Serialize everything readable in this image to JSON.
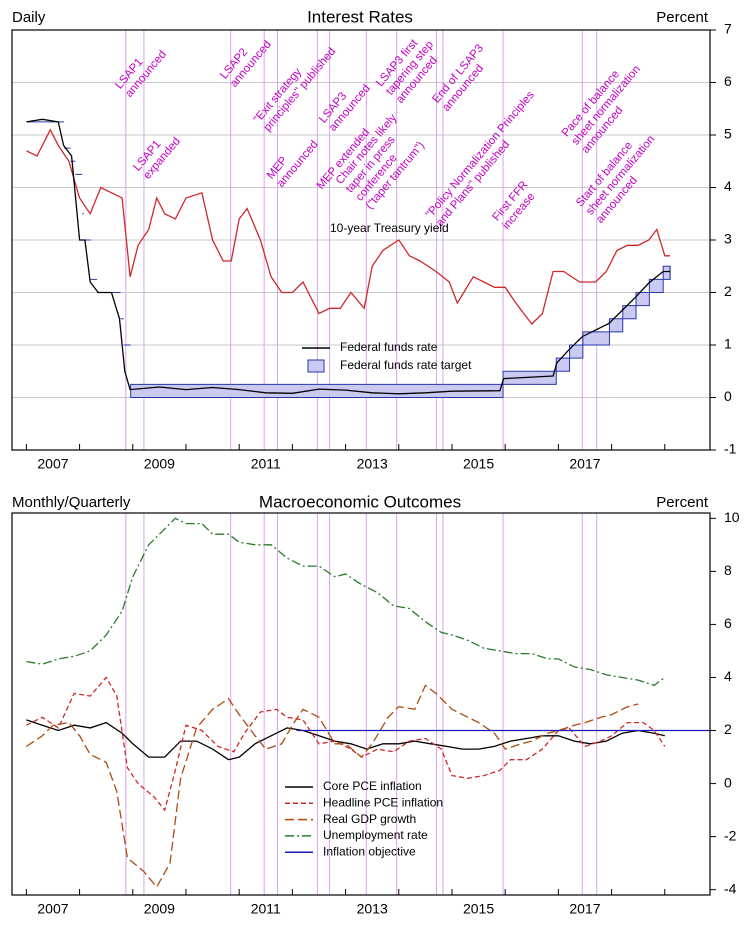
{
  "chart_data": [
    {
      "type": "line",
      "title": "Interest Rates",
      "left_label": "Daily",
      "right_label": "Percent",
      "xlim": [
        2006.73,
        2019.85
      ],
      "ylim": [
        -1,
        7
      ],
      "yticks": [
        -1,
        0,
        1,
        2,
        3,
        4,
        5,
        6,
        7
      ],
      "grid": true,
      "xtick_marks": [
        2007,
        2008,
        2009,
        2010,
        2011,
        2012,
        2013,
        2014,
        2015,
        2016,
        2017,
        2018,
        2019
      ],
      "xticks": [
        {
          "value": 2007.5,
          "label": "2007"
        },
        {
          "value": 2009.5,
          "label": "2009"
        },
        {
          "value": 2011.5,
          "label": "2011"
        },
        {
          "value": 2013.5,
          "label": "2013"
        },
        {
          "value": 2015.5,
          "label": "2015"
        },
        {
          "value": 2017.5,
          "label": "2017"
        }
      ],
      "events": [
        {
          "x": 2008.87,
          "lines": [
            "LSAP1",
            "announced"
          ]
        },
        {
          "x": 2009.21,
          "lines": [
            "LSAP1",
            "expanded"
          ]
        },
        {
          "x": 2010.84,
          "lines": [
            "LSAP2",
            "announced"
          ]
        },
        {
          "x": 2011.47,
          "lines": [
            "\"Exit strategy",
            "principles\" published"
          ]
        },
        {
          "x": 2011.72,
          "lines": [
            "MEP",
            "announced"
          ]
        },
        {
          "x": 2012.47,
          "lines": [
            "MEP extended"
          ]
        },
        {
          "x": 2012.7,
          "lines": [
            "LSAP3",
            "announced"
          ]
        },
        {
          "x": 2013.39,
          "lines": [
            "Chair notes likely",
            "taper in press",
            "conference",
            "(\"taper tantrum\")"
          ]
        },
        {
          "x": 2013.96,
          "lines": [
            "LSAP3 first",
            "tapering step",
            "announced"
          ]
        },
        {
          "x": 2014.71,
          "lines": [
            "\"Policy Normalization Principles",
            "and Plans\" published"
          ]
        },
        {
          "x": 2014.83,
          "lines": [
            "End of LSAP3",
            "announced"
          ]
        },
        {
          "x": 2015.96,
          "lines": [
            "First FFR",
            "increase"
          ]
        },
        {
          "x": 2017.45,
          "lines": [
            "Pace of balance",
            "sheet normalization",
            "announced"
          ]
        },
        {
          "x": 2017.72,
          "lines": [
            "Start of balance",
            "sheet normalization",
            "announced"
          ]
        }
      ],
      "series": [
        {
          "name": "10-year Treasury yield",
          "type": "line",
          "legend": false,
          "color": "#d02828",
          "dash": "solid",
          "x": [
            2007.0,
            2007.2,
            2007.45,
            2007.6,
            2007.8,
            2008.0,
            2008.2,
            2008.4,
            2008.6,
            2008.8,
            2008.95,
            2009.1,
            2009.3,
            2009.45,
            2009.6,
            2009.8,
            2010.0,
            2010.3,
            2010.5,
            2010.7,
            2010.85,
            2011.0,
            2011.15,
            2011.4,
            2011.6,
            2011.8,
            2012.0,
            2012.2,
            2012.5,
            2012.7,
            2012.9,
            2013.1,
            2013.35,
            2013.5,
            2013.7,
            2014.0,
            2014.2,
            2014.4,
            2014.7,
            2014.95,
            2015.1,
            2015.4,
            2015.6,
            2015.8,
            2016.0,
            2016.2,
            2016.5,
            2016.7,
            2016.9,
            2017.1,
            2017.4,
            2017.7,
            2017.9,
            2018.1,
            2018.3,
            2018.5,
            2018.7,
            2018.85,
            2019.0,
            2019.1
          ],
          "values": [
            4.7,
            4.6,
            5.1,
            4.8,
            4.5,
            3.8,
            3.5,
            4.0,
            3.9,
            3.8,
            2.3,
            2.9,
            3.2,
            3.8,
            3.5,
            3.4,
            3.8,
            3.9,
            3.0,
            2.6,
            2.6,
            3.4,
            3.6,
            3.0,
            2.3,
            2.0,
            2.0,
            2.2,
            1.6,
            1.7,
            1.7,
            2.0,
            1.7,
            2.5,
            2.8,
            3.0,
            2.7,
            2.6,
            2.4,
            2.2,
            1.8,
            2.3,
            2.2,
            2.1,
            2.1,
            1.8,
            1.4,
            1.6,
            2.4,
            2.4,
            2.2,
            2.2,
            2.4,
            2.8,
            2.9,
            2.9,
            3.0,
            3.2,
            2.7,
            2.7
          ]
        },
        {
          "name": "Federal funds rate",
          "type": "line",
          "legend": true,
          "color": "#000000",
          "dash": "solid",
          "x": [
            2007.0,
            2007.3,
            2007.6,
            2007.7,
            2007.85,
            2008.0,
            2008.1,
            2008.2,
            2008.35,
            2008.6,
            2008.75,
            2008.85,
            2008.95,
            2009.5,
            2010.0,
            2010.5,
            2011.0,
            2011.5,
            2012.0,
            2012.5,
            2013.0,
            2013.5,
            2014.0,
            2014.5,
            2015.0,
            2015.9,
            2015.97,
            2016.9,
            2016.97,
            2017.2,
            2017.45,
            2017.95,
            2018.2,
            2018.45,
            2018.7,
            2018.97,
            2019.1
          ],
          "values": [
            5.25,
            5.3,
            5.25,
            4.8,
            4.6,
            3.0,
            3.0,
            2.2,
            2.0,
            2.0,
            1.5,
            0.5,
            0.15,
            0.2,
            0.15,
            0.19,
            0.15,
            0.09,
            0.08,
            0.16,
            0.14,
            0.09,
            0.07,
            0.09,
            0.12,
            0.13,
            0.36,
            0.41,
            0.66,
            0.91,
            1.16,
            1.41,
            1.66,
            1.91,
            2.18,
            2.4,
            2.4
          ]
        },
        {
          "name": "Federal funds rate target",
          "type": "band",
          "legend": true,
          "color": "#2a36a8",
          "fill": "#c9c9f2",
          "x": [
            2007.0,
            2007.71,
            2007.83,
            2007.92,
            2008.05,
            2008.08,
            2008.21,
            2008.33,
            2008.77,
            2008.83,
            2008.96,
            2015.96,
            2016.96,
            2017.21,
            2017.46,
            2017.96,
            2018.21,
            2018.46,
            2018.71,
            2018.97,
            2019.1
          ],
          "values": [
            5.25,
            4.75,
            4.5,
            4.25,
            3.5,
            3.0,
            2.25,
            2.0,
            1.5,
            1.0,
            0,
            0.25,
            0.5,
            0.75,
            1.0,
            1.25,
            1.5,
            1.75,
            2.0,
            2.25,
            2.25
          ],
          "upper": [
            5.25,
            4.75,
            4.5,
            4.25,
            3.5,
            3.0,
            2.25,
            2.0,
            1.5,
            1.0,
            0.25,
            0.5,
            0.75,
            1.0,
            1.25,
            1.5,
            1.75,
            2.0,
            2.25,
            2.5,
            2.5
          ]
        }
      ]
    },
    {
      "type": "line",
      "title": "Macroeconomic Outcomes",
      "left_label": "Monthly/Quarterly",
      "right_label": "Percent",
      "xlim": [
        2006.73,
        2019.85
      ],
      "ylim": [
        -4.2,
        10.2
      ],
      "yticks": [
        -4,
        -2,
        0,
        2,
        4,
        6,
        8,
        10
      ],
      "grid": false,
      "xtick_marks": [
        2007,
        2008,
        2009,
        2010,
        2011,
        2012,
        2013,
        2014,
        2015,
        2016,
        2017,
        2018,
        2019
      ],
      "xticks": [
        {
          "value": 2007.5,
          "label": "2007"
        },
        {
          "value": 2009.5,
          "label": "2009"
        },
        {
          "value": 2011.5,
          "label": "2011"
        },
        {
          "value": 2013.5,
          "label": "2013"
        },
        {
          "value": 2015.5,
          "label": "2015"
        },
        {
          "value": 2017.5,
          "label": "2017"
        }
      ],
      "series": [
        {
          "name": "Core PCE inflation",
          "type": "line",
          "legend": true,
          "color": "#000000",
          "dash": "solid",
          "x": [
            2007.0,
            2007.3,
            2007.6,
            2007.9,
            2008.2,
            2008.5,
            2008.8,
            2009.0,
            2009.3,
            2009.6,
            2009.9,
            2010.2,
            2010.5,
            2010.8,
            2011.0,
            2011.3,
            2011.6,
            2011.9,
            2012.2,
            2012.5,
            2012.8,
            2013.1,
            2013.4,
            2013.7,
            2014.0,
            2014.3,
            2014.6,
            2014.9,
            2015.2,
            2015.5,
            2015.8,
            2016.1,
            2016.4,
            2016.7,
            2017.0,
            2017.3,
            2017.6,
            2017.9,
            2018.2,
            2018.5,
            2018.8,
            2019.0
          ],
          "values": [
            2.4,
            2.2,
            2.0,
            2.2,
            2.1,
            2.3,
            1.9,
            1.5,
            1.0,
            1.0,
            1.6,
            1.6,
            1.3,
            0.9,
            1.0,
            1.5,
            1.8,
            2.1,
            2.0,
            1.8,
            1.6,
            1.5,
            1.3,
            1.5,
            1.5,
            1.6,
            1.5,
            1.4,
            1.3,
            1.3,
            1.4,
            1.6,
            1.7,
            1.8,
            1.8,
            1.6,
            1.5,
            1.6,
            1.9,
            2.0,
            1.9,
            1.8
          ]
        },
        {
          "name": "Headline PCE inflation",
          "type": "line",
          "legend": true,
          "color": "#d02828",
          "dash": "dashed",
          "x": [
            2007.0,
            2007.3,
            2007.6,
            2007.9,
            2008.2,
            2008.5,
            2008.7,
            2008.9,
            2009.1,
            2009.4,
            2009.6,
            2009.8,
            2010.0,
            2010.3,
            2010.6,
            2010.9,
            2011.1,
            2011.4,
            2011.7,
            2011.9,
            2012.2,
            2012.5,
            2012.8,
            2013.1,
            2013.3,
            2013.6,
            2013.9,
            2014.2,
            2014.5,
            2014.8,
            2015.0,
            2015.3,
            2015.6,
            2015.9,
            2016.1,
            2016.4,
            2016.7,
            2017.0,
            2017.2,
            2017.5,
            2017.8,
            2018.0,
            2018.3,
            2018.6,
            2018.8,
            2019.0
          ],
          "values": [
            2.2,
            2.5,
            2.1,
            3.4,
            3.3,
            4.0,
            3.3,
            0.6,
            0.0,
            -0.5,
            -1.0,
            0.5,
            2.2,
            2.0,
            1.4,
            1.2,
            1.9,
            2.7,
            2.8,
            2.5,
            2.4,
            1.5,
            1.6,
            1.3,
            1.0,
            1.3,
            1.2,
            1.6,
            1.7,
            1.3,
            0.3,
            0.2,
            0.3,
            0.5,
            0.9,
            0.9,
            1.3,
            2.0,
            2.1,
            1.4,
            1.6,
            1.8,
            2.3,
            2.3,
            2.0,
            1.4
          ]
        },
        {
          "name": "Real GDP growth",
          "type": "line",
          "legend": true,
          "color": "#b04a10",
          "dash": "longdash",
          "x": [
            2007.0,
            2007.3,
            2007.5,
            2007.8,
            2008.0,
            2008.2,
            2008.5,
            2008.7,
            2008.9,
            2009.2,
            2009.45,
            2009.7,
            2009.9,
            2010.2,
            2010.5,
            2010.8,
            2011.0,
            2011.3,
            2011.5,
            2011.8,
            2012.0,
            2012.2,
            2012.5,
            2012.8,
            2013.0,
            2013.3,
            2013.5,
            2013.8,
            2014.0,
            2014.3,
            2014.5,
            2014.7,
            2015.0,
            2015.3,
            2015.5,
            2015.8,
            2016.0,
            2016.3,
            2016.5,
            2016.8,
            2017.0,
            2017.3,
            2017.5,
            2017.8,
            2018.0,
            2018.3,
            2018.5
          ],
          "values": [
            1.4,
            1.8,
            2.2,
            2.3,
            1.8,
            1.1,
            0.8,
            -0.3,
            -2.8,
            -3.3,
            -3.9,
            -3.0,
            0.2,
            2.1,
            2.8,
            3.2,
            2.6,
            1.8,
            1.3,
            1.5,
            2.2,
            2.8,
            2.5,
            1.5,
            1.5,
            1.0,
            1.5,
            2.5,
            2.9,
            2.8,
            3.7,
            3.4,
            2.8,
            2.5,
            2.3,
            1.9,
            1.3,
            1.5,
            1.6,
            1.9,
            2.0,
            2.2,
            2.3,
            2.5,
            2.6,
            2.9,
            3.0
          ]
        },
        {
          "name": "Unemployment rate",
          "type": "line",
          "legend": true,
          "color": "#2a7a2a",
          "dash": "dashdot",
          "x": [
            2007.0,
            2007.3,
            2007.6,
            2007.9,
            2008.2,
            2008.5,
            2008.8,
            2009.0,
            2009.3,
            2009.6,
            2009.8,
            2010.0,
            2010.3,
            2010.5,
            2010.8,
            2011.0,
            2011.3,
            2011.6,
            2011.9,
            2012.2,
            2012.5,
            2012.8,
            2013.0,
            2013.3,
            2013.6,
            2013.9,
            2014.2,
            2014.5,
            2014.8,
            2015.0,
            2015.3,
            2015.6,
            2015.9,
            2016.2,
            2016.5,
            2016.8,
            2017.0,
            2017.3,
            2017.6,
            2017.9,
            2018.2,
            2018.5,
            2018.8,
            2019.0
          ],
          "values": [
            4.6,
            4.5,
            4.7,
            4.8,
            5.0,
            5.6,
            6.5,
            7.8,
            9.0,
            9.6,
            10.0,
            9.8,
            9.8,
            9.4,
            9.4,
            9.1,
            9.0,
            9.0,
            8.5,
            8.2,
            8.2,
            7.8,
            7.9,
            7.5,
            7.2,
            6.7,
            6.6,
            6.1,
            5.7,
            5.6,
            5.4,
            5.1,
            5.0,
            4.9,
            4.9,
            4.7,
            4.7,
            4.4,
            4.3,
            4.1,
            4.0,
            3.9,
            3.7,
            4.0
          ]
        },
        {
          "name": "Inflation objective",
          "type": "line",
          "legend": true,
          "color": "#1a1ab4",
          "dash": "solid",
          "x": [
            2012.08,
            2019.85
          ],
          "values": [
            2,
            2
          ]
        }
      ]
    }
  ]
}
